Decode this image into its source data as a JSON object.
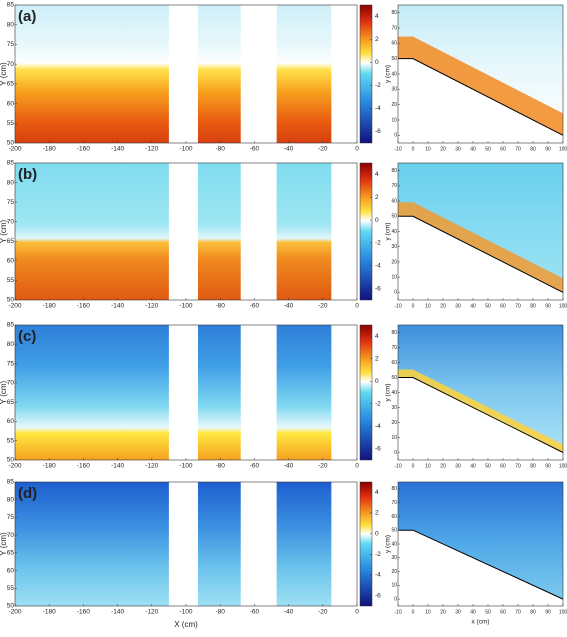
{
  "chart_data": [
    {
      "type": "contour",
      "panel": "(a)",
      "ylabel": "Y (cm)",
      "xlim": [
        -200,
        0
      ],
      "xticks": [
        -200,
        -180,
        -160,
        -140,
        -120,
        -100,
        -80,
        -60,
        -40,
        -20,
        0
      ],
      "ylim": [
        50,
        85
      ],
      "yticks": [
        50,
        55,
        60,
        65,
        70,
        75,
        80,
        85
      ],
      "colorbar": {
        "clim": [
          -7,
          5
        ],
        "ticks": [
          4,
          2,
          0,
          -2,
          -4,
          -6
        ]
      },
      "inset": {
        "ylabel": "y (cm)",
        "xlim": [
          -10,
          100
        ],
        "xticks": [
          -10,
          0,
          10,
          20,
          30,
          40,
          50,
          60,
          70,
          80,
          90,
          100
        ],
        "ylim": [
          -5,
          85
        ],
        "yticks": [
          0,
          10,
          20,
          30,
          40,
          50,
          60,
          70,
          80
        ]
      }
    },
    {
      "type": "contour",
      "panel": "(b)",
      "ylabel": "Y (cm)",
      "xlim": [
        -200,
        0
      ],
      "xticks": [
        -200,
        -180,
        -160,
        -140,
        -120,
        -100,
        -80,
        -60,
        -40,
        -20,
        0
      ],
      "ylim": [
        50,
        85
      ],
      "yticks": [
        50,
        55,
        60,
        65,
        70,
        75,
        80,
        85
      ],
      "colorbar": {
        "clim": [
          -7,
          5
        ],
        "ticks": [
          4,
          2,
          0,
          -2,
          -4,
          -6
        ]
      },
      "inset": {
        "ylabel": "y (cm)",
        "xlim": [
          -10,
          100
        ],
        "xticks": [
          -10,
          0,
          10,
          20,
          30,
          40,
          50,
          60,
          70,
          80,
          90,
          100
        ],
        "ylim": [
          -5,
          85
        ],
        "yticks": [
          0,
          10,
          20,
          30,
          40,
          50,
          60,
          70,
          80
        ]
      }
    },
    {
      "type": "contour",
      "panel": "(c)",
      "ylabel": "Y (cm)",
      "xlim": [
        -200,
        0
      ],
      "xticks": [
        -200,
        -180,
        -160,
        -140,
        -120,
        -100,
        -80,
        -60,
        -40,
        -20,
        0
      ],
      "ylim": [
        50,
        85
      ],
      "yticks": [
        50,
        55,
        60,
        65,
        70,
        75,
        80,
        85
      ],
      "colorbar": {
        "clim": [
          -7,
          5
        ],
        "ticks": [
          4,
          2,
          0,
          -2,
          -4,
          -6
        ]
      },
      "inset": {
        "ylabel": "y (cm)",
        "xlim": [
          -10,
          100
        ],
        "xticks": [
          -10,
          0,
          10,
          20,
          30,
          40,
          50,
          60,
          70,
          80,
          90,
          100
        ],
        "ylim": [
          -5,
          85
        ],
        "yticks": [
          0,
          10,
          20,
          30,
          40,
          50,
          60,
          70,
          80
        ]
      }
    },
    {
      "type": "contour",
      "panel": "(d)",
      "ylabel": "Y (cm)",
      "xlabel": "X (cm)",
      "xlim": [
        -200,
        0
      ],
      "xticks": [
        -200,
        -180,
        -160,
        -140,
        -120,
        -100,
        -80,
        -60,
        -40,
        -20,
        0
      ],
      "ylim": [
        50,
        85
      ],
      "yticks": [
        50,
        55,
        60,
        65,
        70,
        75,
        80,
        85
      ],
      "colorbar": {
        "clim": [
          -7,
          5
        ],
        "ticks": [
          4,
          2,
          0,
          -2,
          -4,
          -6
        ]
      },
      "inset": {
        "ylabel": "y (cm)",
        "xlabel": "x (cm)",
        "xlim": [
          -10,
          100
        ],
        "xticks": [
          -10,
          0,
          10,
          20,
          30,
          40,
          50,
          60,
          70,
          80,
          90,
          100
        ],
        "ylim": [
          -5,
          85
        ],
        "yticks": [
          0,
          10,
          20,
          30,
          40,
          50,
          60,
          70,
          80
        ]
      }
    }
  ]
}
